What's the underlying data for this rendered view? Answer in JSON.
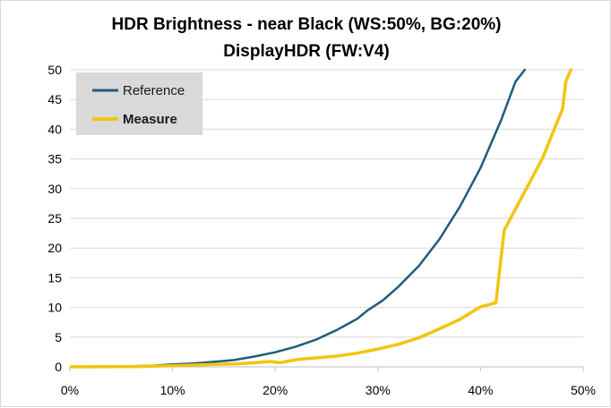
{
  "chart_data": {
    "type": "line",
    "title": "HDR Brightness - near Black (WS:50%, BG:20%)",
    "subtitle": "DisplayHDR (FW:V4)",
    "xlabel": "",
    "ylabel": "",
    "xlim": [
      0,
      50
    ],
    "ylim": [
      0,
      50
    ],
    "x_ticks": [
      "0%",
      "10%",
      "20%",
      "30%",
      "40%",
      "50%"
    ],
    "y_ticks": [
      "0",
      "5",
      "10",
      "15",
      "20",
      "25",
      "30",
      "35",
      "40",
      "45",
      "50"
    ],
    "grid": "horizontal",
    "legend_position": "top-left",
    "series": [
      {
        "name": "Reference",
        "color": "#1f5c7a",
        "x": [
          0,
          4,
          6,
          8,
          10,
          12,
          14,
          16,
          18,
          20,
          22,
          24,
          26,
          28,
          29,
          30.5,
          32,
          34,
          36,
          38,
          40,
          42,
          43.4,
          44.3
        ],
        "y": [
          0,
          0.05,
          0.1,
          0.2,
          0.4,
          0.55,
          0.85,
          1.15,
          1.75,
          2.45,
          3.4,
          4.6,
          6.2,
          8.1,
          9.5,
          11.2,
          13.5,
          17,
          21.5,
          27,
          33.5,
          41.5,
          48,
          50
        ]
      },
      {
        "name": "Measure",
        "color": "#f2c40f",
        "x": [
          0,
          6.5,
          8,
          10,
          12,
          14,
          16,
          18,
          19.5,
          20.5,
          22,
          24,
          26,
          28,
          30,
          32,
          34,
          36,
          38,
          40,
          41.5,
          42.3,
          44,
          46,
          48,
          48.3,
          48.8
        ],
        "y": [
          0,
          0.05,
          0.1,
          0.2,
          0.3,
          0.4,
          0.5,
          0.7,
          0.9,
          0.7,
          1.2,
          1.5,
          1.8,
          2.3,
          3,
          3.8,
          4.9,
          6.4,
          8,
          10.1,
          10.8,
          23,
          28.5,
          35,
          43.5,
          48,
          50
        ]
      }
    ]
  }
}
